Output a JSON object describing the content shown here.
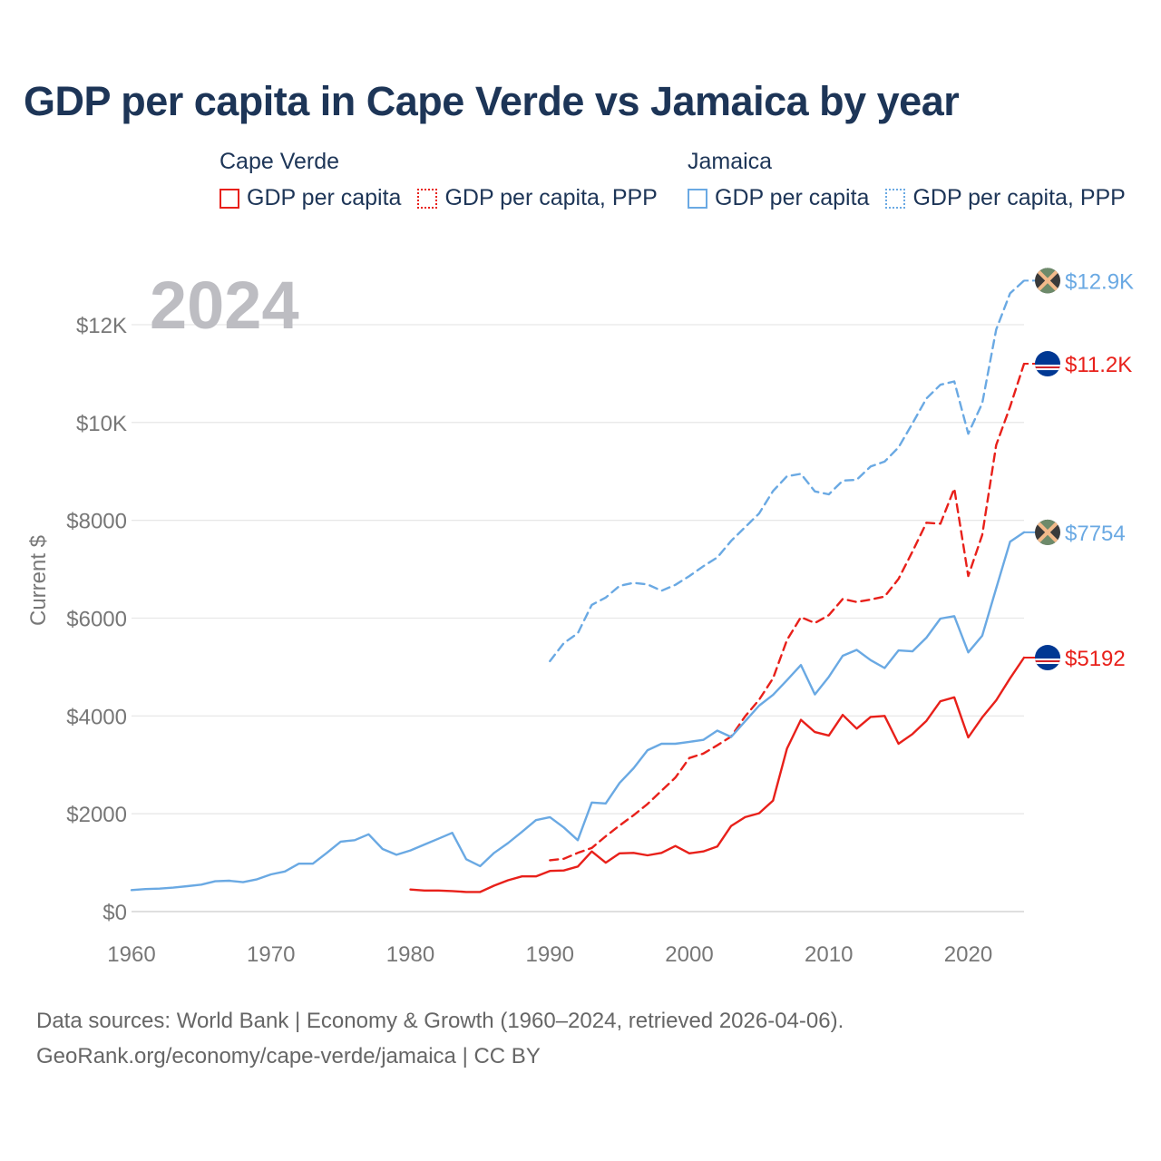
{
  "title": "GDP per capita in Cape Verde vs Jamaica by year",
  "legend": {
    "groups": [
      {
        "name": "Cape Verde",
        "items": [
          {
            "label": "GDP per capita",
            "color": "#e8201a",
            "style": "solid"
          },
          {
            "label": "GDP per capita, PPP",
            "color": "#e8201a",
            "style": "dotted"
          }
        ]
      },
      {
        "name": "Jamaica",
        "items": [
          {
            "label": "GDP per capita",
            "color": "#6aa9e3",
            "style": "solid"
          },
          {
            "label": "GDP per capita, PPP",
            "color": "#6aa9e3",
            "style": "dotted"
          }
        ]
      }
    ]
  },
  "footer": {
    "line1": "Data sources: World Bank | Economy & Growth (1960–2024, retrieved 2026-04-06).",
    "line2": "GeoRank.org/economy/cape-verde/jamaica | CC BY"
  },
  "chart_data": {
    "type": "line",
    "year_label": "2024",
    "ylabel": "Current $",
    "xlim": [
      1960,
      2024
    ],
    "ylim": [
      0,
      13000
    ],
    "x_ticks": [
      1960,
      1970,
      1980,
      1990,
      2000,
      2010,
      2020
    ],
    "x_tick_labels": [
      "1960",
      "1970",
      "1980",
      "1990",
      "2000",
      "2010",
      "2020"
    ],
    "y_ticks": [
      0,
      2000,
      4000,
      6000,
      8000,
      10000,
      12000
    ],
    "y_tick_labels": [
      "$0",
      "$2000",
      "$4000",
      "$6000",
      "$8000",
      "$10K",
      "$12K"
    ],
    "series": [
      {
        "name": "Jamaica GDP per capita, PPP",
        "country": "Jamaica",
        "color": "#6aa9e3",
        "dashed": true,
        "end_label": "$12.9K",
        "marker": "jamaica-flag",
        "x": [
          1990,
          1991,
          1992,
          1993,
          1994,
          1995,
          1996,
          1997,
          1998,
          1999,
          2000,
          2001,
          2002,
          2003,
          2004,
          2005,
          2006,
          2007,
          2008,
          2009,
          2010,
          2011,
          2012,
          2013,
          2014,
          2015,
          2016,
          2017,
          2018,
          2019,
          2020,
          2021,
          2022,
          2023,
          2024
        ],
        "y": [
          5120,
          5490,
          5690,
          6270,
          6420,
          6660,
          6720,
          6690,
          6560,
          6680,
          6860,
          7060,
          7240,
          7580,
          7860,
          8140,
          8600,
          8900,
          8950,
          8590,
          8530,
          8810,
          8830,
          9100,
          9200,
          9490,
          9980,
          10490,
          10770,
          10840,
          9770,
          10390,
          11900,
          12640,
          12900
        ]
      },
      {
        "name": "Cape Verde GDP per capita, PPP",
        "country": "Cape Verde",
        "color": "#e8201a",
        "dashed": true,
        "end_label": "$11.2K",
        "marker": "cape-verde-flag",
        "x": [
          1990,
          1991,
          1992,
          1993,
          1994,
          1995,
          1996,
          1997,
          1998,
          1999,
          2000,
          2001,
          2002,
          2003,
          2004,
          2005,
          2006,
          2007,
          2008,
          2009,
          2010,
          2011,
          2012,
          2013,
          2014,
          2015,
          2016,
          2017,
          2018,
          2019,
          2020,
          2021,
          2022,
          2023,
          2024
        ],
        "y": [
          1050,
          1080,
          1200,
          1300,
          1540,
          1760,
          1970,
          2200,
          2470,
          2740,
          3140,
          3230,
          3400,
          3580,
          3990,
          4330,
          4770,
          5550,
          6020,
          5900,
          6060,
          6390,
          6330,
          6380,
          6440,
          6800,
          7360,
          7950,
          7930,
          8650,
          6860,
          7700,
          9540,
          10320,
          11200
        ]
      },
      {
        "name": "Jamaica GDP per capita",
        "country": "Jamaica",
        "color": "#6aa9e3",
        "dashed": false,
        "end_label": "$7754",
        "marker": "jamaica-flag",
        "x": [
          1960,
          1961,
          1962,
          1963,
          1964,
          1965,
          1966,
          1967,
          1968,
          1969,
          1970,
          1971,
          1972,
          1973,
          1974,
          1975,
          1976,
          1977,
          1978,
          1979,
          1980,
          1981,
          1982,
          1983,
          1984,
          1985,
          1986,
          1987,
          1988,
          1989,
          1990,
          1991,
          1992,
          1993,
          1994,
          1995,
          1996,
          1997,
          1998,
          1999,
          2000,
          2001,
          2002,
          2003,
          2004,
          2005,
          2006,
          2007,
          2008,
          2009,
          2010,
          2011,
          2012,
          2013,
          2014,
          2015,
          2016,
          2017,
          2018,
          2019,
          2020,
          2021,
          2022,
          2023,
          2024
        ],
        "y": [
          440,
          460,
          470,
          490,
          520,
          550,
          620,
          630,
          600,
          660,
          760,
          820,
          980,
          980,
          1200,
          1430,
          1460,
          1580,
          1280,
          1160,
          1250,
          1370,
          1490,
          1610,
          1070,
          930,
          1200,
          1400,
          1630,
          1870,
          1930,
          1720,
          1460,
          2230,
          2210,
          2630,
          2930,
          3300,
          3430,
          3430,
          3470,
          3510,
          3700,
          3570,
          3890,
          4210,
          4430,
          4730,
          5040,
          4440,
          4800,
          5230,
          5350,
          5140,
          4980,
          5340,
          5320,
          5600,
          5990,
          6040,
          5300,
          5640,
          6610,
          7560,
          7754
        ]
      },
      {
        "name": "Cape Verde GDP per capita",
        "country": "Cape Verde",
        "color": "#e8201a",
        "dashed": false,
        "end_label": "$5192",
        "marker": "cape-verde-flag",
        "x": [
          1980,
          1981,
          1982,
          1983,
          1984,
          1985,
          1986,
          1987,
          1988,
          1989,
          1990,
          1991,
          1992,
          1993,
          1994,
          1995,
          1996,
          1997,
          1998,
          1999,
          2000,
          2001,
          2002,
          2003,
          2004,
          2005,
          2006,
          2007,
          2008,
          2009,
          2010,
          2011,
          2012,
          2013,
          2014,
          2015,
          2016,
          2017,
          2018,
          2019,
          2020,
          2021,
          2022,
          2023,
          2024
        ],
        "y": [
          450,
          430,
          430,
          420,
          400,
          400,
          530,
          640,
          720,
          720,
          830,
          840,
          920,
          1230,
          1000,
          1190,
          1200,
          1150,
          1200,
          1340,
          1190,
          1230,
          1330,
          1750,
          1930,
          2010,
          2270,
          3330,
          3920,
          3670,
          3600,
          4020,
          3740,
          3980,
          4000,
          3430,
          3630,
          3900,
          4300,
          4380,
          3560,
          3970,
          4320,
          4770,
          5192
        ]
      }
    ]
  }
}
